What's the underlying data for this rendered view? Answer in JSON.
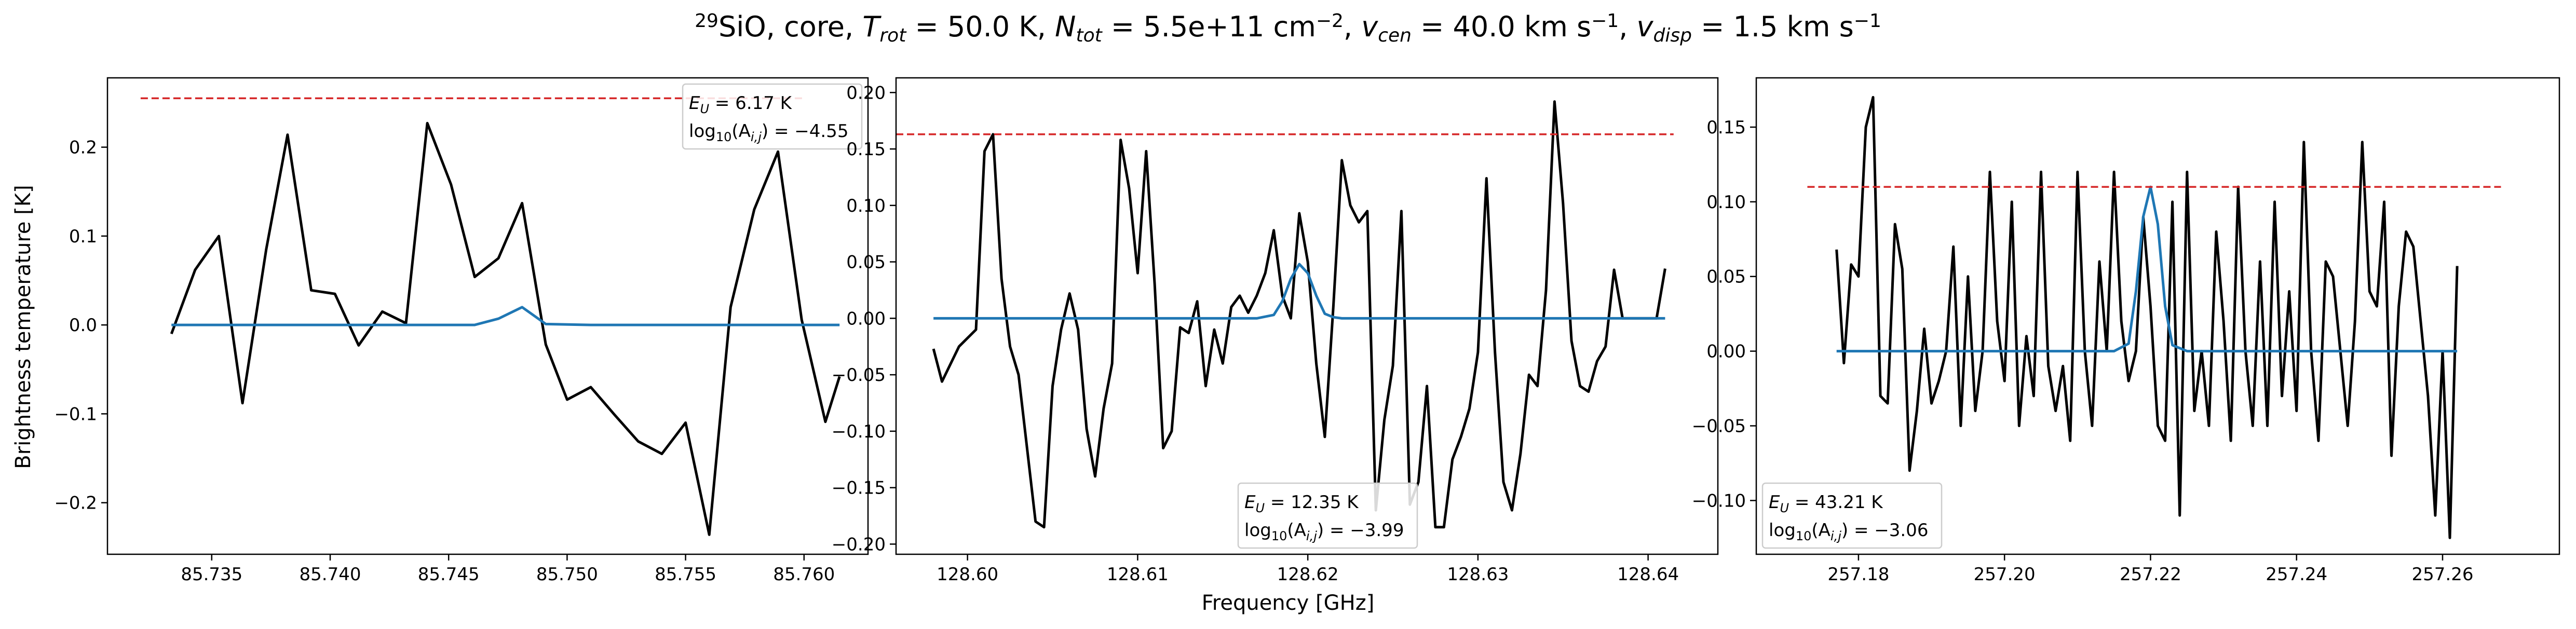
{
  "figure": {
    "title_parts": {
      "sup": "29",
      "species": "SiO, core, ",
      "trot_label": "T",
      "trot_sub": "rot",
      "trot_value": " =  50.0 K, ",
      "ntot_label": "N",
      "ntot_sub": "tot",
      "ntot_value": " =  5.5e+11 cm",
      "ntot_exp": "−2",
      "sep1": ", ",
      "vcen_label": "v",
      "vcen_sub": "cen",
      "vcen_value": " =  40.0 km s",
      "vcen_exp": "−1",
      "sep2": ", ",
      "vdisp_label": "v",
      "vdisp_sub": "disp",
      "vdisp_value": " =  1.5 km s",
      "vdisp_exp": "−1"
    },
    "xlabel": "Frequency [GHz]",
    "ylabel": "Brightness temperature [K]"
  },
  "chart_data": [
    {
      "type": "line",
      "xlim": [
        85.7306,
        85.7627
      ],
      "ylim": [
        -0.258,
        0.278
      ],
      "xticks": [
        85.735,
        85.74,
        85.745,
        85.75,
        85.755,
        85.76
      ],
      "xtick_labels": [
        "85.735",
        "85.740",
        "85.745",
        "85.750",
        "85.755",
        "85.760"
      ],
      "yticks": [
        -0.2,
        -0.1,
        0.0,
        0.1,
        0.2
      ],
      "ytick_labels": [
        "−0.2",
        "−0.1",
        "0.0",
        "0.1",
        "0.2"
      ],
      "noise_level": {
        "y": 0.255,
        "x": [
          85.732,
          85.76
        ]
      },
      "legend": {
        "eu": "E",
        "eu_sub": "U",
        "eu_value": " = 6.17 K",
        "log": "log",
        "log_sub": "10",
        "log_open": "(A",
        "log_sub2": "i,j",
        "log_value": ") = −4.55",
        "loc": "upper right"
      },
      "series": [
        {
          "style": "observed",
          "x": [
            85.7333,
            85.7343,
            85.7353,
            85.7363,
            85.7373,
            85.7382,
            85.7392,
            85.7402,
            85.7412,
            85.7422,
            85.7432,
            85.7441,
            85.7451,
            85.7461,
            85.7471,
            85.7481,
            85.7491,
            85.75,
            85.751,
            85.752,
            85.753,
            85.754,
            85.755,
            85.756,
            85.7569,
            85.7579,
            85.7589,
            85.7599,
            85.7609,
            85.7615
          ],
          "y": [
            -0.01,
            0.062,
            0.1,
            -0.088,
            0.085,
            0.214,
            0.039,
            0.035,
            -0.023,
            0.015,
            0.002,
            0.227,
            0.158,
            0.054,
            0.075,
            0.137,
            -0.022,
            -0.084,
            -0.07,
            -0.101,
            -0.131,
            -0.145,
            -0.11,
            -0.236,
            0.02,
            0.13,
            0.195,
            0.006,
            -0.109,
            -0.058
          ]
        },
        {
          "style": "model",
          "x": [
            85.7333,
            85.7353,
            85.7373,
            85.7392,
            85.7412,
            85.7432,
            85.7451,
            85.7461,
            85.7471,
            85.7481,
            85.7491,
            85.751,
            85.753,
            85.755,
            85.7569,
            85.7589,
            85.7609,
            85.7615
          ],
          "y": [
            0.0,
            0.0,
            0.0,
            0.0,
            0.0,
            0.0,
            0.0,
            0.0,
            0.007,
            0.02,
            0.001,
            0.0,
            0.0,
            0.0,
            0.0,
            0.0,
            0.0,
            0.0
          ]
        }
      ]
    },
    {
      "type": "line",
      "xlim": [
        128.5958,
        128.6441
      ],
      "ylim": [
        -0.209,
        0.213
      ],
      "xticks": [
        128.6,
        128.61,
        128.62,
        128.63,
        128.64
      ],
      "xtick_labels": [
        "128.60",
        "128.61",
        "128.62",
        "128.63",
        "128.64"
      ],
      "yticks": [
        -0.2,
        -0.15,
        -0.1,
        -0.05,
        0.0,
        0.05,
        0.1,
        0.15,
        0.2
      ],
      "ytick_labels": [
        "−0.20",
        "−0.15",
        "−0.10",
        "−0.05",
        "0.00",
        "0.05",
        "0.10",
        "0.15",
        "0.20"
      ],
      "noise_level": {
        "y": 0.163,
        "x": [
          128.5958,
          128.6415
        ]
      },
      "legend": {
        "eu": "E",
        "eu_sub": "U",
        "eu_value": " = 12.35 K",
        "log": "log",
        "log_sub": "10",
        "log_open": "(A",
        "log_sub2": "i,j",
        "log_value": ") = −3.99",
        "loc": "lower center"
      },
      "series": [
        {
          "style": "observed",
          "x": [
            128.598,
            128.5985,
            128.5995,
            128.6005,
            128.601,
            128.6015,
            128.602,
            128.6025,
            128.603,
            128.604,
            128.6045,
            128.605,
            128.6055,
            128.606,
            128.6065,
            128.607,
            128.6075,
            128.608,
            128.6085,
            128.609,
            128.6095,
            128.61,
            128.6105,
            128.611,
            128.6115,
            128.612,
            128.6125,
            128.613,
            128.6135,
            128.614,
            128.6145,
            128.615,
            128.6155,
            128.616,
            128.6165,
            128.617,
            128.6175,
            128.618,
            128.6185,
            128.619,
            128.6195,
            128.62,
            128.6205,
            128.621,
            128.6215,
            128.622,
            128.6225,
            128.623,
            128.6235,
            128.624,
            128.6245,
            128.625,
            128.6255,
            128.626,
            128.6265,
            128.627,
            128.6275,
            128.628,
            128.6285,
            128.629,
            128.6295,
            128.63,
            128.6305,
            128.631,
            128.6315,
            128.632,
            128.6325,
            128.633,
            128.6335,
            128.634,
            128.6345,
            128.635,
            128.6355,
            128.636,
            128.6365,
            128.637,
            128.6375,
            128.638,
            128.6385,
            128.639,
            128.6395,
            128.64,
            128.6405,
            128.641
          ],
          "y": [
            -0.027,
            -0.056,
            -0.025,
            -0.01,
            0.148,
            0.163,
            0.035,
            -0.025,
            -0.05,
            -0.18,
            -0.185,
            -0.06,
            -0.01,
            0.022,
            -0.01,
            -0.098,
            -0.14,
            -0.08,
            -0.04,
            0.158,
            0.115,
            0.04,
            0.148,
            0.03,
            -0.115,
            -0.1,
            -0.008,
            -0.013,
            0.015,
            -0.06,
            -0.01,
            -0.04,
            0.01,
            0.02,
            0.005,
            0.02,
            0.04,
            0.078,
            0.02,
            0.0,
            0.093,
            0.05,
            -0.04,
            -0.105,
            0.01,
            0.14,
            0.1,
            0.085,
            0.095,
            -0.17,
            -0.09,
            -0.042,
            0.095,
            -0.165,
            -0.145,
            -0.06,
            -0.185,
            -0.185,
            -0.125,
            -0.105,
            -0.08,
            -0.03,
            0.124,
            -0.03,
            -0.145,
            -0.17,
            -0.12,
            -0.05,
            -0.06,
            0.025,
            0.192,
            0.102,
            -0.02,
            -0.06,
            -0.065,
            -0.038,
            -0.025,
            0.043,
            0.0,
            0.0,
            0.0,
            0.0,
            0.0,
            0.044
          ]
        },
        {
          "style": "model",
          "x": [
            128.598,
            128.605,
            128.61,
            128.615,
            128.617,
            128.618,
            128.6185,
            128.619,
            128.6195,
            128.62,
            128.6205,
            128.621,
            128.6215,
            128.622,
            128.623,
            128.63,
            128.635,
            128.641
          ],
          "y": [
            0.0,
            0.0,
            0.0,
            0.0,
            0.0,
            0.003,
            0.015,
            0.035,
            0.048,
            0.04,
            0.02,
            0.004,
            0.001,
            0.0,
            0.0,
            0.0,
            0.0,
            0.0
          ]
        }
      ]
    },
    {
      "type": "line",
      "xlim": [
        257.166,
        257.276
      ],
      "ylim": [
        -0.136,
        0.183
      ],
      "xticks": [
        257.18,
        257.2,
        257.22,
        257.24,
        257.26
      ],
      "xtick_labels": [
        "257.18",
        "257.20",
        "257.22",
        "257.24",
        "257.26"
      ],
      "yticks": [
        -0.1,
        -0.05,
        0.0,
        0.05,
        0.1,
        0.15
      ],
      "ytick_labels": [
        "−0.10",
        "−0.05",
        "0.00",
        "0.05",
        "0.10",
        "0.15"
      ],
      "noise_level": {
        "y": 0.11,
        "x": [
          257.173,
          257.268
        ]
      },
      "legend": {
        "eu": "E",
        "eu_sub": "U",
        "eu_value": " = 43.21 K",
        "log": "log",
        "log_sub": "10",
        "log_open": "(A",
        "log_sub2": "i,j",
        "log_value": ") = −3.06",
        "loc": "lower left"
      },
      "series": [
        {
          "style": "observed",
          "x": [
            257.177,
            257.178,
            257.179,
            257.18,
            257.181,
            257.182,
            257.183,
            257.184,
            257.185,
            257.186,
            257.187,
            257.188,
            257.189,
            257.19,
            257.191,
            257.192,
            257.193,
            257.194,
            257.195,
            257.196,
            257.197,
            257.198,
            257.199,
            257.2,
            257.201,
            257.202,
            257.203,
            257.204,
            257.205,
            257.206,
            257.207,
            257.208,
            257.209,
            257.21,
            257.211,
            257.212,
            257.213,
            257.214,
            257.215,
            257.216,
            257.217,
            257.218,
            257.219,
            257.22,
            257.221,
            257.222,
            257.223,
            257.224,
            257.225,
            257.226,
            257.227,
            257.228,
            257.229,
            257.23,
            257.231,
            257.232,
            257.233,
            257.234,
            257.235,
            257.236,
            257.237,
            257.238,
            257.239,
            257.24,
            257.241,
            257.242,
            257.243,
            257.244,
            257.245,
            257.246,
            257.247,
            257.248,
            257.249,
            257.25,
            257.251,
            257.252,
            257.253,
            257.254,
            257.255,
            257.256,
            257.257,
            257.258,
            257.259,
            257.26,
            257.261,
            257.262
          ],
          "y": [
            0.068,
            -0.008,
            0.058,
            0.05,
            0.15,
            0.17,
            -0.03,
            -0.035,
            0.085,
            0.055,
            -0.08,
            -0.04,
            0.015,
            -0.035,
            -0.02,
            0.0,
            0.07,
            -0.05,
            0.05,
            -0.04,
            0.0,
            0.12,
            0.02,
            -0.02,
            0.1,
            -0.05,
            0.01,
            -0.03,
            0.12,
            -0.01,
            -0.04,
            -0.01,
            -0.06,
            0.12,
            0.0,
            -0.05,
            0.06,
            0.0,
            0.12,
            0.02,
            -0.02,
            0.0,
            0.09,
            0.03,
            -0.05,
            -0.06,
            0.1,
            -0.11,
            0.12,
            -0.04,
            0.0,
            -0.05,
            0.08,
            0.02,
            -0.06,
            0.11,
            0.0,
            -0.05,
            0.06,
            -0.05,
            0.1,
            -0.03,
            0.04,
            -0.04,
            0.14,
            0.0,
            -0.06,
            0.06,
            0.05,
            0.0,
            -0.05,
            0.02,
            0.14,
            0.04,
            0.03,
            0.1,
            -0.07,
            0.03,
            0.08,
            0.07,
            0.02,
            -0.03,
            -0.11,
            0.0,
            -0.125,
            0.057
          ]
        },
        {
          "style": "model",
          "x": [
            257.177,
            257.19,
            257.2,
            257.21,
            257.215,
            257.217,
            257.218,
            257.219,
            257.22,
            257.221,
            257.222,
            257.223,
            257.225,
            257.23,
            257.24,
            257.25,
            257.262
          ],
          "y": [
            0.0,
            0.0,
            0.0,
            0.0,
            0.0,
            0.005,
            0.04,
            0.09,
            0.11,
            0.085,
            0.03,
            0.004,
            0.0,
            0.0,
            0.0,
            0.0,
            0.0
          ]
        }
      ]
    }
  ]
}
